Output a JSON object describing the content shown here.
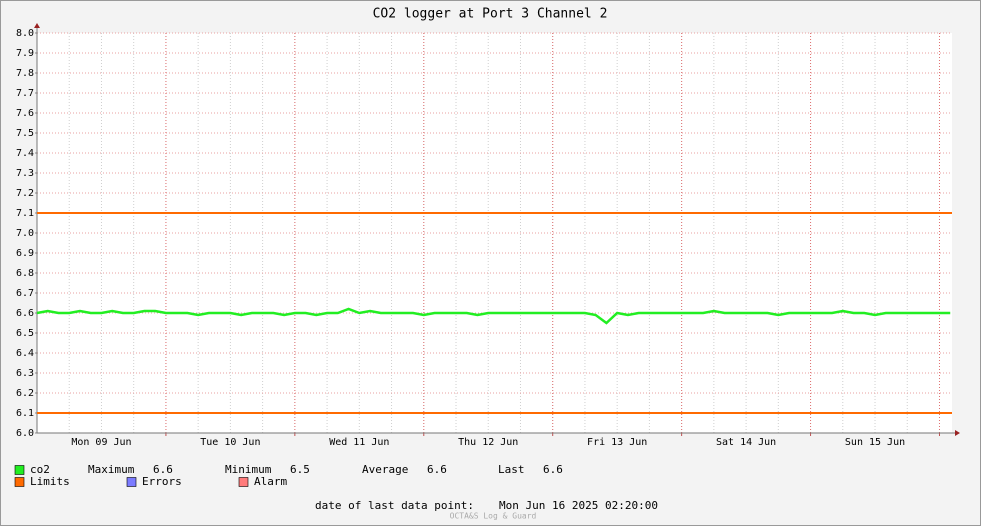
{
  "chart_data": {
    "type": "line",
    "title": "CO2 logger at Port 3 Channel 2",
    "xlim": [
      0,
      170.33
    ],
    "xticks": [
      {
        "value": 12,
        "label": "Mon 09 Jun"
      },
      {
        "value": 36,
        "label": "Tue 10 Jun"
      },
      {
        "value": 60,
        "label": "Wed 11 Jun"
      },
      {
        "value": 84,
        "label": "Thu 12 Jun"
      },
      {
        "value": 108,
        "label": "Fri 13 Jun"
      },
      {
        "value": 132,
        "label": "Sat 14 Jun"
      },
      {
        "value": 156,
        "label": "Sun 15 Jun"
      }
    ],
    "x_major_grid": [
      24,
      48,
      72,
      96,
      120,
      144,
      168
    ],
    "ylim": [
      6,
      8
    ],
    "yticks": [
      {
        "value": 6,
        "label": "6.0"
      },
      6.1,
      6.2,
      6.3,
      6.4,
      6.5,
      6.6,
      6.7,
      6.8,
      6.9,
      {
        "value": 7,
        "label": "7.0"
      },
      7.1,
      7.2,
      7.3,
      7.4,
      7.5,
      7.6,
      7.7,
      7.8,
      7.9,
      {
        "value": 8,
        "label": "8.0"
      }
    ],
    "grid": true,
    "x": [
      0,
      2,
      4,
      6,
      8,
      10,
      12,
      14,
      16,
      18,
      20,
      22,
      24,
      26,
      28,
      30,
      32,
      34,
      36,
      38,
      40,
      42,
      44,
      46,
      48,
      50,
      52,
      54,
      56,
      58,
      60,
      62,
      64,
      66,
      68,
      70,
      72,
      74,
      76,
      78,
      80,
      82,
      84,
      86,
      88,
      90,
      92,
      94,
      96,
      98,
      100,
      102,
      104,
      106,
      108,
      110,
      112,
      114,
      116,
      118,
      120,
      122,
      124,
      126,
      128,
      130,
      132,
      134,
      136,
      138,
      140,
      142,
      144,
      146,
      148,
      150,
      152,
      154,
      156,
      158,
      160,
      162,
      164,
      166,
      168,
      170
    ],
    "series": [
      {
        "name": "co2",
        "color": "#22ee22",
        "values": [
          6.6,
          6.61,
          6.6,
          6.6,
          6.61,
          6.6,
          6.6,
          6.61,
          6.6,
          6.6,
          6.61,
          6.61,
          6.6,
          6.6,
          6.6,
          6.59,
          6.6,
          6.6,
          6.6,
          6.59,
          6.6,
          6.6,
          6.6,
          6.59,
          6.6,
          6.6,
          6.59,
          6.6,
          6.6,
          6.62,
          6.6,
          6.61,
          6.6,
          6.6,
          6.6,
          6.6,
          6.59,
          6.6,
          6.6,
          6.6,
          6.6,
          6.59,
          6.6,
          6.6,
          6.6,
          6.6,
          6.6,
          6.6,
          6.6,
          6.6,
          6.6,
          6.6,
          6.59,
          6.55,
          6.6,
          6.59,
          6.6,
          6.6,
          6.6,
          6.6,
          6.6,
          6.6,
          6.6,
          6.61,
          6.6,
          6.6,
          6.6,
          6.6,
          6.6,
          6.59,
          6.6,
          6.6,
          6.6,
          6.6,
          6.6,
          6.61,
          6.6,
          6.6,
          6.59,
          6.6,
          6.6,
          6.6,
          6.6,
          6.6,
          6.6,
          6.6
        ]
      }
    ],
    "stats": [
      {
        "name": "Maximum",
        "value": 6.6
      },
      {
        "name": "Minimum",
        "value": 6.5
      },
      {
        "name": "Average",
        "value": 6.6
      },
      {
        "name": "Last",
        "value": 6.6
      }
    ],
    "limits": {
      "name": "Limits",
      "color": "#ff6a00",
      "values": [
        7.1,
        6.1
      ]
    },
    "legend_extra": [
      {
        "name": "Errors",
        "color": "#7b7bff"
      },
      {
        "name": "Alarm",
        "color": "#ff7b7b"
      }
    ],
    "last_point_label": "date of last data point:",
    "last_point": "Mon Jun 16 2025 02:20:00",
    "watermark": "OCTA&S Log & Guard"
  }
}
